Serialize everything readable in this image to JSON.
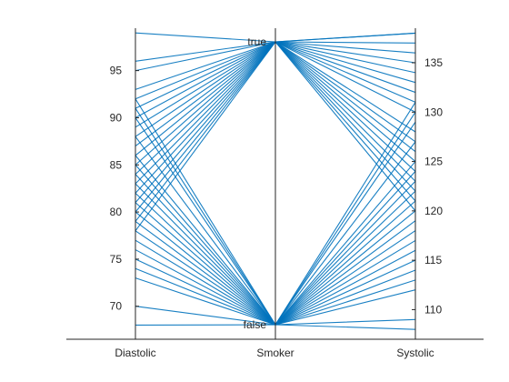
{
  "chart_data": {
    "type": "parallel_coordinates",
    "color": "#0072BD",
    "axis_color": "#262626",
    "coordinates": [
      "Diastolic",
      "Smoker",
      "Systolic"
    ],
    "axes": [
      {
        "name": "Diastolic",
        "ylim": [
          66.5,
          99.5
        ],
        "ticks": [
          70,
          75,
          80,
          85,
          90,
          95
        ],
        "tick_labels": [
          "70",
          "75",
          "80",
          "85",
          "90",
          "95"
        ],
        "tick_side": "left"
      },
      {
        "name": "Smoker",
        "categories": [
          "false",
          "true"
        ],
        "ticks": [],
        "tick_labels": []
      },
      {
        "name": "Systolic",
        "ylim": [
          107,
          138.5
        ],
        "ticks": [
          110,
          115,
          120,
          125,
          130,
          135
        ],
        "tick_labels": [
          "110",
          "115",
          "120",
          "125",
          "130",
          "135"
        ],
        "tick_side": "right"
      }
    ],
    "category_labels": [
      "true",
      "false"
    ],
    "profiles": [
      {
        "diastolic": 99,
        "smoker": "true",
        "systolic": 138
      },
      {
        "diastolic": 96,
        "smoker": "true",
        "systolic": 138
      },
      {
        "diastolic": 95,
        "smoker": "true",
        "systolic": 137
      },
      {
        "diastolic": 93,
        "smoker": "true",
        "systolic": 136
      },
      {
        "diastolic": 92,
        "smoker": "true",
        "systolic": 135
      },
      {
        "diastolic": 91,
        "smoker": "true",
        "systolic": 134
      },
      {
        "diastolic": 90,
        "smoker": "true",
        "systolic": 133
      },
      {
        "diastolic": 89,
        "smoker": "true",
        "systolic": 132
      },
      {
        "diastolic": 88,
        "smoker": "true",
        "systolic": 131
      },
      {
        "diastolic": 87,
        "smoker": "true",
        "systolic": 130
      },
      {
        "diastolic": 86,
        "smoker": "true",
        "systolic": 128
      },
      {
        "diastolic": 85,
        "smoker": "true",
        "systolic": 127
      },
      {
        "diastolic": 84,
        "smoker": "true",
        "systolic": 126
      },
      {
        "diastolic": 83,
        "smoker": "true",
        "systolic": 125
      },
      {
        "diastolic": 82,
        "smoker": "true",
        "systolic": 124
      },
      {
        "diastolic": 81,
        "smoker": "true",
        "systolic": 123
      },
      {
        "diastolic": 80,
        "smoker": "true",
        "systolic": 122
      },
      {
        "diastolic": 79,
        "smoker": "true",
        "systolic": 121
      },
      {
        "diastolic": 78,
        "smoker": "true",
        "systolic": 120
      },
      {
        "diastolic": 92,
        "smoker": "false",
        "systolic": 131
      },
      {
        "diastolic": 91,
        "smoker": "false",
        "systolic": 130
      },
      {
        "diastolic": 90,
        "smoker": "false",
        "systolic": 129
      },
      {
        "diastolic": 88,
        "smoker": "false",
        "systolic": 127
      },
      {
        "diastolic": 86,
        "smoker": "false",
        "systolic": 125
      },
      {
        "diastolic": 85,
        "smoker": "false",
        "systolic": 124
      },
      {
        "diastolic": 84,
        "smoker": "false",
        "systolic": 123
      },
      {
        "diastolic": 83,
        "smoker": "false",
        "systolic": 122
      },
      {
        "diastolic": 82,
        "smoker": "false",
        "systolic": 121
      },
      {
        "diastolic": 81,
        "smoker": "false",
        "systolic": 120
      },
      {
        "diastolic": 80,
        "smoker": "false",
        "systolic": 119
      },
      {
        "diastolic": 79,
        "smoker": "false",
        "systolic": 118
      },
      {
        "diastolic": 78,
        "smoker": "false",
        "systolic": 117
      },
      {
        "diastolic": 77,
        "smoker": "false",
        "systolic": 116
      },
      {
        "diastolic": 76,
        "smoker": "false",
        "systolic": 115
      },
      {
        "diastolic": 75,
        "smoker": "false",
        "systolic": 114
      },
      {
        "diastolic": 74,
        "smoker": "false",
        "systolic": 113
      },
      {
        "diastolic": 73,
        "smoker": "false",
        "systolic": 112
      },
      {
        "diastolic": 70,
        "smoker": "false",
        "systolic": 109
      },
      {
        "diastolic": 68,
        "smoker": "false",
        "systolic": 108
      }
    ]
  }
}
